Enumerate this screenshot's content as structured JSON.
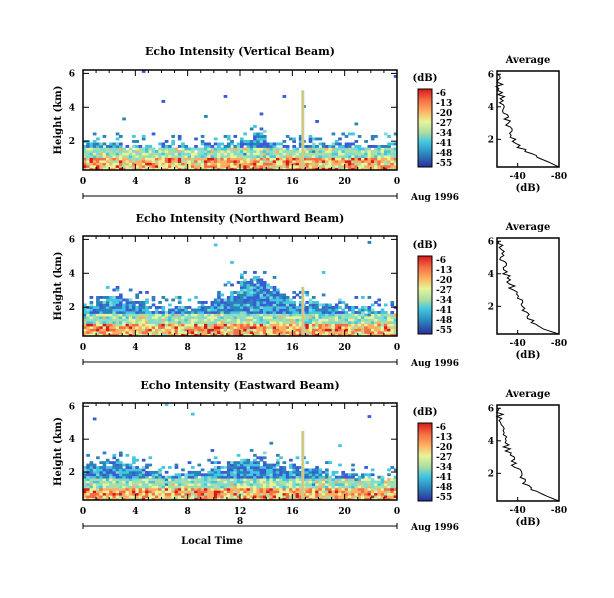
{
  "chart_data": [
    {
      "type": "heatmap",
      "title": "Echo Intensity (Vertical Beam)",
      "ylabel": "Height (km)",
      "x_ticks": [
        "0",
        "4",
        "8",
        "12",
        "16",
        "20",
        "0"
      ],
      "y_ticks": [
        "2",
        "4",
        "6"
      ],
      "xlim": [
        0,
        24
      ],
      "ylim": [
        0.3,
        6.2
      ],
      "date_label": "Aug 1996",
      "date_marker": "8",
      "colorbar": {
        "unit": "(dB)",
        "ticks": [
          "-6",
          "-13",
          "-20",
          "-27",
          "-34",
          "-41",
          "-48",
          "-55"
        ]
      },
      "echo_top_km": [
        2.0,
        1.9,
        1.9,
        1.8,
        1.8,
        1.8,
        1.8,
        1.8,
        1.7,
        1.8,
        1.9,
        1.9,
        2.0,
        2.5,
        1.9,
        1.8,
        1.8,
        1.8,
        1.9,
        1.9,
        1.9,
        1.8,
        1.8,
        1.9
      ],
      "spikes": [
        {
          "hour": 16.8,
          "top_km": 5.0
        }
      ],
      "average_profile": {
        "title": "Average",
        "xlabel": "(dB)",
        "x_ticks": [
          "-40",
          "-80"
        ],
        "y_ticks": [
          "2",
          "4",
          "6"
        ],
        "xlim": [
          -20,
          -80
        ],
        "height_km": [
          0.3,
          0.6,
          1.0,
          1.5,
          2.0,
          2.5,
          3.0,
          3.5,
          4.0,
          4.5,
          5.0,
          5.5,
          6.0
        ],
        "db": [
          -80,
          -70,
          -55,
          -42,
          -37,
          -34,
          -31,
          -28,
          -26,
          -25,
          -23,
          -22,
          -21
        ]
      }
    },
    {
      "type": "heatmap",
      "title": "Echo Intensity (Northward Beam)",
      "ylabel": "Height (km)",
      "x_ticks": [
        "0",
        "4",
        "8",
        "12",
        "16",
        "20",
        "0"
      ],
      "y_ticks": [
        "2",
        "4",
        "6"
      ],
      "xlim": [
        0,
        24
      ],
      "ylim": [
        0.3,
        6.2
      ],
      "date_label": "Aug 1996",
      "date_marker": "8",
      "colorbar": {
        "unit": "(dB)",
        "ticks": [
          "-6",
          "-13",
          "-20",
          "-27",
          "-34",
          "-41",
          "-48",
          "-55"
        ]
      },
      "echo_top_km": [
        2.4,
        2.6,
        2.6,
        2.5,
        2.3,
        2.1,
        1.9,
        2.0,
        2.1,
        2.3,
        2.5,
        3.0,
        3.5,
        3.7,
        3.2,
        2.6,
        2.4,
        2.3,
        2.2,
        2.1,
        2.0,
        2.0,
        1.9,
        1.8
      ],
      "spikes": [
        {
          "hour": 16.8,
          "top_km": 3.2
        }
      ],
      "average_profile": {
        "title": "Average",
        "xlabel": "(dB)",
        "x_ticks": [
          "-40",
          "-80"
        ],
        "y_ticks": [
          "2",
          "4",
          "6"
        ],
        "xlim": [
          -20,
          -80
        ],
        "height_km": [
          0.3,
          0.6,
          1.0,
          1.5,
          2.0,
          2.5,
          3.0,
          3.5,
          4.0,
          4.5,
          5.0,
          5.5,
          6.0
        ],
        "db": [
          -80,
          -65,
          -55,
          -50,
          -45,
          -40,
          -36,
          -32,
          -29,
          -27,
          -25,
          -23,
          -22
        ]
      }
    },
    {
      "type": "heatmap",
      "title": "Echo Intensity (Eastward Beam)",
      "ylabel": "Height (km)",
      "xlabel": "Local Time",
      "x_ticks": [
        "0",
        "4",
        "8",
        "12",
        "16",
        "20",
        "0"
      ],
      "y_ticks": [
        "2",
        "4",
        "6"
      ],
      "xlim": [
        0,
        24
      ],
      "ylim": [
        0.3,
        6.2
      ],
      "date_label": "Aug 1996",
      "date_marker": "8",
      "colorbar": {
        "unit": "(dB)",
        "ticks": [
          "-6",
          "-13",
          "-20",
          "-27",
          "-34",
          "-41",
          "-48",
          "-55"
        ]
      },
      "echo_top_km": [
        2.5,
        2.6,
        2.6,
        2.5,
        2.3,
        2.0,
        1.8,
        1.9,
        2.0,
        2.2,
        2.4,
        2.6,
        2.8,
        2.7,
        2.5,
        2.4,
        2.3,
        2.2,
        2.1,
        2.0,
        1.9,
        1.9,
        1.8,
        1.7
      ],
      "spikes": [
        {
          "hour": 16.8,
          "top_km": 4.5
        }
      ],
      "average_profile": {
        "title": "Average",
        "xlabel": "(dB)",
        "x_ticks": [
          "-40",
          "-80"
        ],
        "y_ticks": [
          "2",
          "4",
          "6"
        ],
        "xlim": [
          -20,
          -80
        ],
        "height_km": [
          0.3,
          0.6,
          1.0,
          1.5,
          2.0,
          2.5,
          3.0,
          3.5,
          4.0,
          4.5,
          5.0,
          5.5,
          6.0
        ],
        "db": [
          -80,
          -68,
          -55,
          -46,
          -42,
          -37,
          -34,
          -30,
          -28,
          -26,
          -24,
          -23,
          -22
        ]
      }
    }
  ]
}
